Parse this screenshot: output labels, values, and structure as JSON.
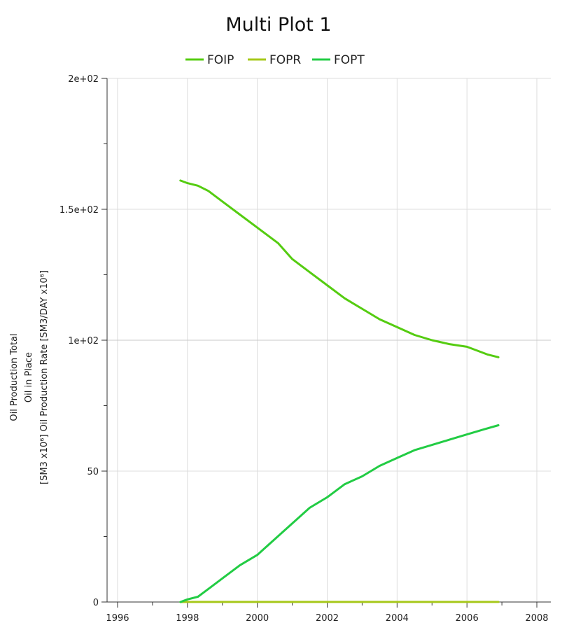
{
  "chart_data": {
    "type": "line",
    "title": "Multi Plot 1",
    "ylabel_lines": [
      "Oil Production Total",
      "Oil in Place",
      "[SM3 x10⁶] Oil Production Rate [SM3/DAY x10⁶]"
    ],
    "xlabel": "",
    "xlim": [
      1995.7,
      2008.4
    ],
    "ylim": [
      0,
      200
    ],
    "x_ticks": [
      1996,
      1998,
      2000,
      2002,
      2004,
      2006,
      2008
    ],
    "y_ticks": [
      {
        "value": 0,
        "label": "0"
      },
      {
        "value": 50,
        "label": "50"
      },
      {
        "value": 100,
        "label": "1e+02"
      },
      {
        "value": 150,
        "label": "1.5e+02"
      },
      {
        "value": 200,
        "label": "2e+02"
      }
    ],
    "grid": true,
    "legend_position": "top-center",
    "series": [
      {
        "name": "FOIP",
        "color": "#55cc11",
        "x": [
          1997.8,
          1998.0,
          1998.3,
          1998.6,
          1999.0,
          1999.5,
          2000.0,
          2000.6,
          2001.0,
          2001.5,
          2002.0,
          2002.5,
          2003.0,
          2003.5,
          2004.0,
          2004.5,
          2005.0,
          2005.5,
          2006.0,
          2006.3,
          2006.6,
          2006.9
        ],
        "y": [
          161,
          160,
          159,
          157,
          153,
          148,
          143,
          137,
          131,
          126,
          121,
          116,
          112,
          108,
          105,
          102,
          100,
          98.5,
          97.5,
          96,
          94.5,
          93.5
        ]
      },
      {
        "name": "FOPR",
        "color": "#a6c81a",
        "x": [
          1997.8,
          1998.0,
          2000.0,
          2002.0,
          2004.0,
          2006.0,
          2006.9
        ],
        "y": [
          0,
          0.02,
          0.02,
          0.02,
          0.02,
          0.02,
          0.02
        ]
      },
      {
        "name": "FOPT",
        "color": "#22cc44",
        "x": [
          1997.8,
          1998.0,
          1998.3,
          1998.6,
          1999.0,
          1999.5,
          2000.0,
          2000.5,
          2001.0,
          2001.5,
          2002.0,
          2002.5,
          2003.0,
          2003.5,
          2004.0,
          2004.5,
          2005.0,
          2005.5,
          2006.0,
          2006.5,
          2006.9
        ],
        "y": [
          0,
          1,
          2,
          5,
          9,
          14,
          18,
          24,
          30,
          36,
          40,
          45,
          48,
          52,
          55,
          58,
          60,
          62,
          64,
          66,
          67.5
        ]
      }
    ]
  }
}
